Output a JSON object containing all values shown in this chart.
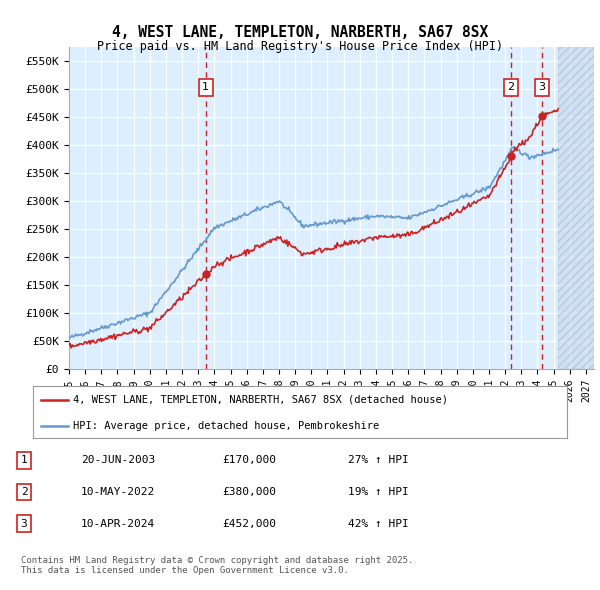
{
  "title": "4, WEST LANE, TEMPLETON, NARBERTH, SA67 8SX",
  "subtitle": "Price paid vs. HM Land Registry's House Price Index (HPI)",
  "xlim_start": 1995.0,
  "xlim_end": 2027.5,
  "ylim": [
    0,
    575000
  ],
  "yticks": [
    0,
    50000,
    100000,
    150000,
    200000,
    250000,
    300000,
    350000,
    400000,
    450000,
    500000,
    550000
  ],
  "ytick_labels": [
    "£0",
    "£50K",
    "£100K",
    "£150K",
    "£200K",
    "£250K",
    "£300K",
    "£350K",
    "£400K",
    "£450K",
    "£500K",
    "£550K"
  ],
  "hpi_color": "#6699cc",
  "price_color": "#cc2222",
  "sale_dates": [
    2003.47,
    2022.36,
    2024.27
  ],
  "sale_prices": [
    170000,
    380000,
    452000
  ],
  "sale_labels": [
    "1",
    "2",
    "3"
  ],
  "vline_color": "#cc2222",
  "legend_entries": [
    "4, WEST LANE, TEMPLETON, NARBERTH, SA67 8SX (detached house)",
    "HPI: Average price, detached house, Pembrokeshire"
  ],
  "table_entries": [
    [
      "1",
      "20-JUN-2003",
      "£170,000",
      "27% ↑ HPI"
    ],
    [
      "2",
      "10-MAY-2022",
      "£380,000",
      "19% ↑ HPI"
    ],
    [
      "3",
      "10-APR-2024",
      "£452,000",
      "42% ↑ HPI"
    ]
  ],
  "footer": "Contains HM Land Registry data © Crown copyright and database right 2025.\nThis data is licensed under the Open Government Licence v3.0.",
  "plot_bg": "#ddeeff",
  "future_start": 2025.3
}
